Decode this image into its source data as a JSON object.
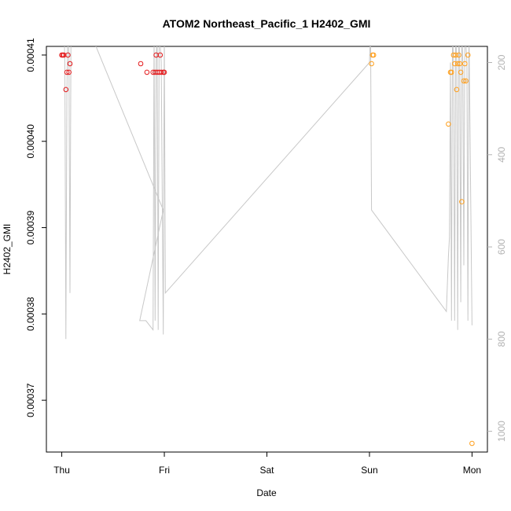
{
  "chart_data": {
    "type": "scatter",
    "title": "ATOM2 Northeast_Pacific_1 H2402_GMI",
    "xlabel": "Date",
    "ylabel": "H2402_GMI",
    "x_ticks": [
      {
        "value": 0,
        "label": "Thu"
      },
      {
        "value": 1,
        "label": "Fri"
      },
      {
        "value": 2,
        "label": "Sat"
      },
      {
        "value": 3,
        "label": "Sun"
      },
      {
        "value": 4,
        "label": "Mon"
      }
    ],
    "y_ticks": [
      0.00037,
      0.00038,
      0.00039,
      0.0004,
      0.00041
    ],
    "y_tick_labels": [
      "0.00037",
      "0.00038",
      "0.00039",
      "0.00040",
      "0.00041"
    ],
    "y2_ticks": [
      200,
      400,
      600,
      800,
      1000
    ],
    "y2_tick_labels": [
      "200",
      "400",
      "600",
      "800",
      "1000"
    ],
    "xlim": [
      -0.15,
      4.15
    ],
    "ylim": [
      0.000364,
      0.000411
    ],
    "y2lim": [
      1045,
      165
    ],
    "colors": {
      "red": "#e41a1c",
      "orange": "#ff9f1c",
      "line": "#c8c8c8",
      "axis": "#000000",
      "right_axis": "#b3b3b3"
    },
    "series": [
      {
        "color": "red",
        "points": [
          [
            0.0,
            0.00041
          ],
          [
            0.01,
            0.00041
          ],
          [
            0.02,
            0.00041
          ],
          [
            0.04,
            0.000406
          ],
          [
            0.05,
            0.000408
          ],
          [
            0.06,
            0.00041
          ],
          [
            0.07,
            0.000408
          ],
          [
            0.08,
            0.000409
          ],
          [
            0.77,
            0.000409
          ],
          [
            0.83,
            0.000408
          ],
          [
            0.89,
            0.000408
          ],
          [
            0.91,
            0.000408
          ],
          [
            0.92,
            0.00041
          ],
          [
            0.93,
            0.000408
          ],
          [
            0.95,
            0.000408
          ],
          [
            0.96,
            0.00041
          ],
          [
            0.97,
            0.000408
          ],
          [
            0.99,
            0.000408
          ],
          [
            1.0,
            0.000408
          ]
        ]
      },
      {
        "color": "orange",
        "points": [
          [
            3.02,
            0.000409
          ],
          [
            3.03,
            0.00041
          ],
          [
            3.04,
            0.00041
          ],
          [
            3.77,
            0.000402
          ],
          [
            3.79,
            0.000408
          ],
          [
            3.8,
            0.000408
          ],
          [
            3.82,
            0.00041
          ],
          [
            3.83,
            0.000409
          ],
          [
            3.84,
            0.00041
          ],
          [
            3.85,
            0.000406
          ],
          [
            3.86,
            0.000409
          ],
          [
            3.87,
            0.00041
          ],
          [
            3.88,
            0.000409
          ],
          [
            3.89,
            0.000408
          ],
          [
            3.9,
            0.000393
          ],
          [
            3.92,
            0.000407
          ],
          [
            3.93,
            0.000409
          ],
          [
            3.94,
            0.000407
          ],
          [
            3.96,
            0.00041
          ],
          [
            4.0,
            0.000365
          ]
        ]
      }
    ],
    "line_y2": [
      [
        0.0,
        120
      ],
      [
        0.02,
        100
      ],
      [
        0.03,
        200
      ],
      [
        0.04,
        800
      ],
      [
        0.05,
        260
      ],
      [
        0.06,
        100
      ],
      [
        0.07,
        200
      ],
      [
        0.08,
        700
      ],
      [
        0.09,
        120
      ],
      [
        0.1,
        100
      ],
      [
        0.25,
        120
      ],
      [
        0.99,
        520
      ],
      [
        0.76,
        760
      ],
      [
        0.82,
        760
      ],
      [
        0.89,
        780
      ],
      [
        0.9,
        120
      ],
      [
        0.91,
        760
      ],
      [
        0.92,
        200
      ],
      [
        0.93,
        120
      ],
      [
        0.94,
        780
      ],
      [
        0.95,
        120
      ],
      [
        0.97,
        200
      ],
      [
        0.99,
        790
      ],
      [
        1.0,
        120
      ],
      [
        1.01,
        700
      ],
      [
        3.0,
        200
      ],
      [
        3.01,
        120
      ],
      [
        3.02,
        520
      ],
      [
        3.75,
        740
      ],
      [
        3.77,
        620
      ],
      [
        3.78,
        580
      ],
      [
        3.79,
        200
      ],
      [
        3.8,
        760
      ],
      [
        3.81,
        120
      ],
      [
        3.82,
        200
      ],
      [
        3.83,
        760
      ],
      [
        3.84,
        120
      ],
      [
        3.85,
        200
      ],
      [
        3.86,
        780
      ],
      [
        3.87,
        120
      ],
      [
        3.88,
        200
      ],
      [
        3.89,
        720
      ],
      [
        3.9,
        120
      ],
      [
        3.91,
        200
      ],
      [
        3.92,
        640
      ],
      [
        3.93,
        120
      ],
      [
        3.95,
        200
      ],
      [
        3.96,
        760
      ],
      [
        3.97,
        120
      ],
      [
        4.0,
        770
      ]
    ]
  }
}
